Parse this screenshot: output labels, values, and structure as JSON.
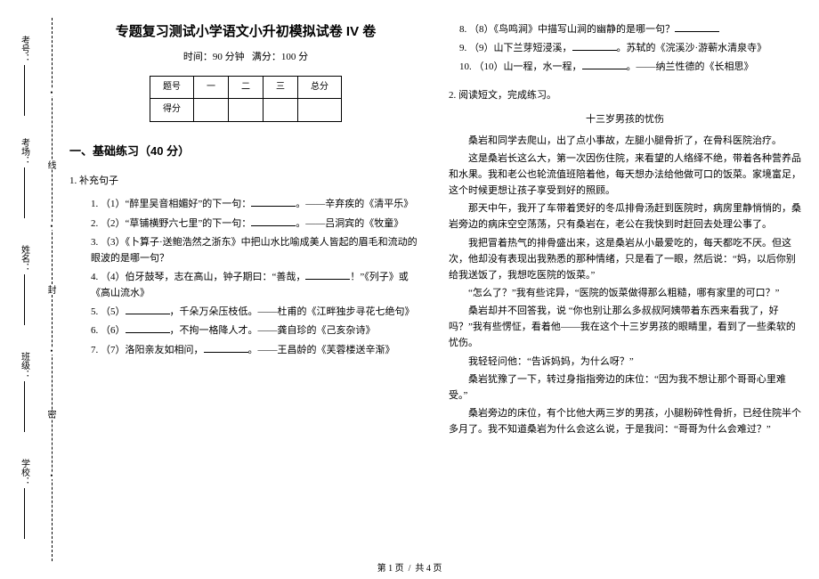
{
  "margin": {
    "cut_labels": [
      "线",
      "封",
      "密"
    ],
    "fields": [
      {
        "label": "考号："
      },
      {
        "label": "考场："
      },
      {
        "label": "姓名："
      },
      {
        "label": "班级："
      },
      {
        "label": "学校："
      }
    ]
  },
  "header": {
    "title": "专题复习测试小学语文小升初模拟试卷 IV 卷",
    "subtitle_time": "时间：90 分钟",
    "subtitle_score": "满分：100 分"
  },
  "score_table": {
    "row0": [
      "题号",
      "一",
      "二",
      "三",
      "总分"
    ],
    "row1_first": "得分"
  },
  "section1": {
    "heading": "一、基础练习（40 分）",
    "q1_label": "1. 补充句子",
    "items": [
      "（1）“醉里吴音相媚好”的下一句：______。——辛弃疾的《清平乐》",
      "（2）“草铺横野六七里”的下一句：______。——吕洞宾的《牧童》",
      "（3）《卜算子·送鲍浩然之浙东》中把山水比喻成美人皆起的眉毛和流动的眼波的是哪一句？",
      "（4）伯牙鼓琴，志在高山，钟子期曰：“善哉，______！”《列子》或《高山流水》",
      "（5）______，千朵万朵压枝低。——杜甫的《江畔独步寻花七绝句》",
      "（6）______，不拘一格降人才。——龚自珍的《己亥杂诗》",
      "（7）洛阳亲友如相问，______。——王昌龄的《芙蓉楼送辛渐》"
    ]
  },
  "col2_top": [
    "（8）《鸟鸣涧》中描写山涧的幽静的是哪一句？______",
    "（9）山下兰芽短浸溪，______。苏轼的《浣溪沙·游蕲水清泉寺》",
    "（10）山一程，水一程，______。——纳兰性德的《长相思》"
  ],
  "q2_label": "2. 阅读短文，完成练习。",
  "passage": {
    "title": "十三岁男孩的忧伤",
    "paras": [
      "桑岩和同学去爬山，出了点小事故，左腿小腿骨折了，在骨科医院治疗。",
      "这是桑岩长这么大，第一次因伤住院，来看望的人络绎不绝，带着各种营养品和水果。我和老公也轮流值班陪着他，每天想办法给他做可口的饭菜。家境富足，这个时候更想让孩子享受到好的照顾。",
      "那天中午，我开了车带着煲好的冬瓜排骨汤赶到医院时，病房里静悄悄的，桑岩旁边的病床空空荡荡，只有桑岩在，老公在我快到时赶回去处理公事了。",
      "我把冒着热气的排骨盛出来，这是桑岩从小最爱吃的，每天都吃不厌。但这次，他却没有表现出我熟悉的那种情绪，只是看了一眼，然后说：“妈，以后你别给我送饭了，我想吃医院的饭菜。”",
      "“怎么了？”我有些诧异，“医院的饭菜做得那么粗糙，哪有家里的可口？”",
      "桑岩却并不回答我，说 “你也别让那么多叔叔阿姨带着东西来看我了，好吗？”我有些愣怔，看着他——我在这个十三岁男孩的眼睛里，看到了一些柔软的忧伤。",
      "我轻轻问他：“告诉妈妈，为什么呀？”",
      "桑岩犹豫了一下，转过身指指旁边的床位：“因为我不想让那个哥哥心里难受。”",
      "桑岩旁边的床位，有个比他大两三岁的男孩，小腿粉碎性骨折，已经住院半个多月了。我不知道桑岩为什么会这么说，于是我问：“哥哥为什么会难过？”"
    ]
  },
  "footer": {
    "left": "第 1 页",
    "right": "共 4 页"
  }
}
